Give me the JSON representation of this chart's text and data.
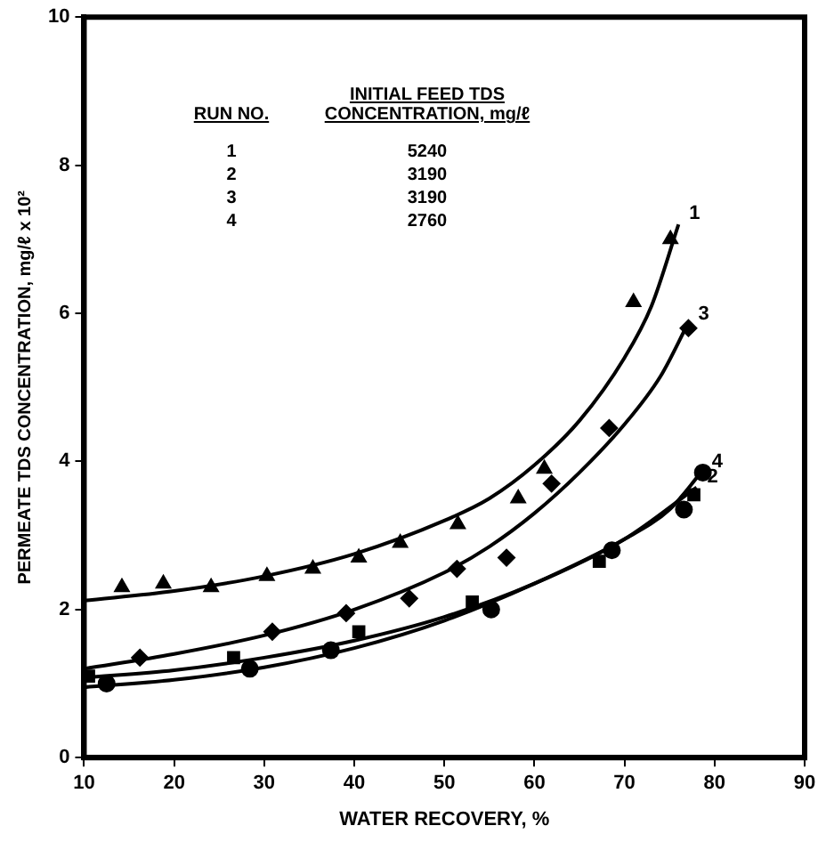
{
  "chart_data": {
    "type": "scatter",
    "xlabel": "WATER RECOVERY, %",
    "ylabel": "PERMEATE TDS CONCENTRATION, mg/ℓ x 10²",
    "xlim": [
      10,
      90
    ],
    "xticks": [
      10,
      20,
      30,
      40,
      50,
      60,
      70,
      80,
      90
    ],
    "ylim": [
      0,
      10
    ],
    "yticks": [
      0,
      2,
      4,
      6,
      8,
      10
    ],
    "grid": false,
    "legend": false,
    "series": [
      {
        "marker": "triangle",
        "color": "#000000",
        "x": [
          14.2,
          18.8,
          24.1,
          30.3,
          35.4,
          40.5,
          45.1,
          51.5,
          58.2,
          61.1,
          71.0,
          75.1
        ],
        "values": [
          2.3,
          2.35,
          2.3,
          2.45,
          2.55,
          2.7,
          2.9,
          3.15,
          3.5,
          3.9,
          6.15,
          7.0
        ]
      },
      {
        "marker": "diamond",
        "color": "#000000",
        "x": [
          16.2,
          30.9,
          39.1,
          46.1,
          51.4,
          56.9,
          61.9,
          68.3,
          77.1
        ],
        "values": [
          1.35,
          1.7,
          1.95,
          2.15,
          2.55,
          2.7,
          3.7,
          4.45,
          5.8
        ]
      },
      {
        "marker": "square",
        "color": "#000000",
        "x": [
          10.5,
          26.6,
          40.5,
          53.1,
          67.2,
          77.7
        ],
        "values": [
          1.1,
          1.35,
          1.7,
          2.1,
          2.65,
          3.55
        ]
      },
      {
        "marker": "circle",
        "color": "#000000",
        "x": [
          12.5,
          28.4,
          37.4,
          55.2,
          68.6,
          76.6,
          78.7
        ],
        "values": [
          1.0,
          1.2,
          1.45,
          2.0,
          2.8,
          3.35,
          3.85
        ]
      },
      {
        "type": "line",
        "name": "1",
        "marker": "none",
        "color": "#000000",
        "x": [
          10,
          20,
          30,
          40,
          50,
          55,
          60,
          65,
          70,
          73,
          76
        ],
        "values": [
          2.12,
          2.25,
          2.45,
          2.75,
          3.2,
          3.5,
          3.95,
          4.55,
          5.4,
          6.1,
          7.2
        ]
      },
      {
        "type": "line",
        "name": "3",
        "marker": "none",
        "color": "#000000",
        "x": [
          10,
          20,
          30,
          40,
          50,
          55,
          60,
          65,
          70,
          74,
          77
        ],
        "values": [
          1.2,
          1.4,
          1.65,
          2.0,
          2.5,
          2.85,
          3.3,
          3.85,
          4.5,
          5.15,
          5.85
        ]
      },
      {
        "type": "line",
        "name": "4",
        "marker": "none",
        "color": "#000000",
        "x": [
          10,
          20,
          30,
          40,
          50,
          60,
          70,
          75,
          78.5
        ],
        "values": [
          0.95,
          1.05,
          1.22,
          1.48,
          1.85,
          2.35,
          2.95,
          3.35,
          3.85
        ]
      },
      {
        "type": "line",
        "name": "2",
        "marker": "none",
        "color": "#000000",
        "x": [
          10,
          20,
          30,
          40,
          50,
          60,
          70,
          78
        ],
        "values": [
          1.08,
          1.18,
          1.35,
          1.58,
          1.9,
          2.35,
          2.95,
          3.65
        ]
      }
    ],
    "annotations": [
      "RUN NO.",
      "INITIAL FEED TDS\nCONCENTRATION, mg/ℓ",
      "1",
      "5240",
      "2",
      "3190",
      "3",
      "3190",
      "4",
      "2760"
    ]
  }
}
